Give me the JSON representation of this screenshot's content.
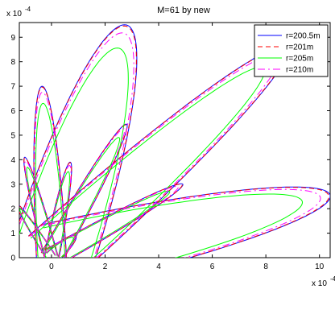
{
  "chart_data": {
    "type": "line",
    "title": "M=61 by new",
    "xlabel": "",
    "ylabel": "",
    "x_multiplier": "x 10",
    "x_multiplier_exp": "-4",
    "y_multiplier": "x 10",
    "y_multiplier_exp": "-4",
    "xlim": [
      -1.2,
      10.4
    ],
    "ylim": [
      0,
      9.6
    ],
    "xticks": [
      0,
      2,
      4,
      6,
      8,
      10
    ],
    "yticks": [
      0,
      1,
      2,
      3,
      4,
      5,
      6,
      7,
      8,
      9
    ],
    "grid": false,
    "legend_position": "top-right",
    "series": [
      {
        "name": "r=200.5m",
        "color": "#0000ff",
        "dash": "",
        "pattern_scale": 1.0
      },
      {
        "name": "r=201m",
        "color": "#ff0000",
        "dash": "6,4",
        "pattern_scale": 0.995
      },
      {
        "name": "r=205m",
        "color": "#00ff00",
        "dash": "",
        "pattern_scale": 0.9
      },
      {
        "name": "r=210m",
        "color": "#ff00ff",
        "dash": "9,4,2,4",
        "pattern_scale": 0.965
      }
    ],
    "lobes": [
      {
        "peak": [
          0.9,
          0.9
        ],
        "width": 0.22
      },
      {
        "peak": [
          2.8,
          9.5
        ],
        "width": 0.16
      },
      {
        "peak": [
          10.4,
          2.55
        ],
        "width": 0.13
      },
      {
        "peak": [
          8.8,
          8.6
        ],
        "width": 0.1
      },
      {
        "peak": [
          -0.35,
          7.0
        ],
        "width": 0.08
      },
      {
        "peak": [
          2.8,
          5.45
        ],
        "width": 0.07
      },
      {
        "peak": [
          4.9,
          3.0
        ],
        "width": 0.07
      },
      {
        "peak": [
          -1.0,
          4.1
        ],
        "width": 0.06
      },
      {
        "peak": [
          0.7,
          3.9
        ],
        "width": 0.07
      },
      {
        "peak": [
          -1.3,
          2.2
        ],
        "width": 0.07
      }
    ]
  }
}
